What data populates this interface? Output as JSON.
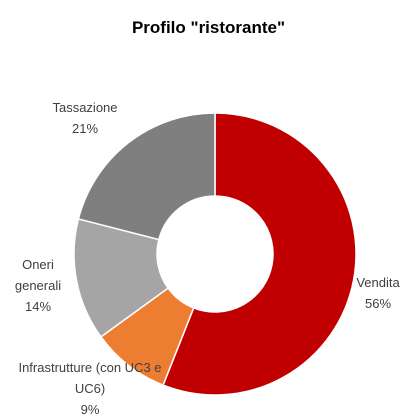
{
  "chart_data": {
    "type": "donut",
    "title": "Profilo \"ristorante\"",
    "categories": [
      "Vendita",
      "Infrastrutture (con UC3 e UC6)",
      "Oneri generali",
      "Tassazione"
    ],
    "values": [
      56,
      9,
      14,
      21
    ],
    "value_labels": [
      "56%",
      "9%",
      "14%",
      "21%"
    ],
    "colors": [
      "#c00000",
      "#ed7d31",
      "#a5a5a5",
      "#7f7f7f"
    ]
  }
}
